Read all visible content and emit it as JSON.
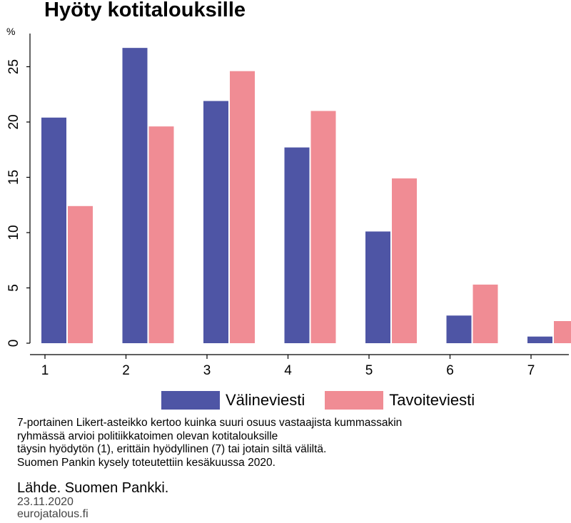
{
  "title": "Hyöty kotitalouksille",
  "unit_label": "%",
  "chart_data": {
    "type": "bar",
    "categories": [
      "1",
      "2",
      "3",
      "4",
      "5",
      "6",
      "7"
    ],
    "series": [
      {
        "name": "Välineviesti",
        "color": "#4e55a5",
        "values": [
          20.4,
          26.7,
          21.9,
          17.7,
          10.1,
          2.5,
          0.6
        ]
      },
      {
        "name": "Tavoiteviesti",
        "color": "#f08c94",
        "values": [
          12.4,
          19.6,
          24.6,
          21.0,
          14.9,
          5.3,
          2.0
        ]
      }
    ],
    "ylim": [
      0,
      28
    ],
    "yticks": [
      0,
      5,
      10,
      15,
      20,
      25
    ],
    "grid": false,
    "legend": "bottom"
  },
  "note": "7-portainen Likert-asteikko kertoo kuinka suuri osuus vastaajista kummassakin\nryhmässä arvioi politiikkatoimen olevan kotitalouksille\ntäysin hyödytön (1), erittäin hyödyllinen (7) tai jotain siltä väliltä.\nSuomen Pankin kysely toteutettiin kesäkuussa 2020.",
  "source": "Lähde. Suomen Pankki.",
  "date": "23.11.2020",
  "site": "eurojatalous.fi"
}
